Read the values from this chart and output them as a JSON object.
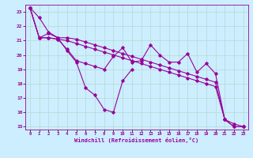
{
  "xlabel": "Windchill (Refroidissement éolien,°C)",
  "background_color": "#cceeff",
  "grid_color": "#b8ddd8",
  "line_color": "#990099",
  "xlim": [
    -0.5,
    23.5
  ],
  "ylim": [
    14.8,
    23.5
  ],
  "yticks": [
    15,
    16,
    17,
    18,
    19,
    20,
    21,
    22,
    23
  ],
  "xticks": [
    0,
    1,
    2,
    3,
    4,
    5,
    6,
    7,
    8,
    9,
    10,
    11,
    12,
    13,
    14,
    15,
    16,
    17,
    18,
    19,
    20,
    21,
    22,
    23
  ],
  "series": [
    [
      23.3,
      22.6,
      21.6,
      21.2,
      20.3,
      19.5,
      17.7,
      17.2,
      16.2,
      16.0,
      18.2,
      19.0,
      null,
      null,
      null,
      null,
      null,
      null,
      null,
      null,
      null,
      null,
      null,
      null
    ],
    [
      23.3,
      21.2,
      21.2,
      21.1,
      21.0,
      20.8,
      20.6,
      20.4,
      20.2,
      20.0,
      19.8,
      19.6,
      19.4,
      19.2,
      19.0,
      18.8,
      18.6,
      18.4,
      18.2,
      18.0,
      17.8,
      15.5,
      15.0,
      15.0
    ],
    [
      23.3,
      21.2,
      21.2,
      21.1,
      20.4,
      19.6,
      19.4,
      19.2,
      19.0,
      19.9,
      20.5,
      19.5,
      19.6,
      20.7,
      20.0,
      19.5,
      19.5,
      20.1,
      18.8,
      19.4,
      18.7,
      15.5,
      15.0,
      15.0
    ],
    [
      23.3,
      21.2,
      21.5,
      21.2,
      21.2,
      21.1,
      20.9,
      20.7,
      20.5,
      20.3,
      20.1,
      19.9,
      19.7,
      19.5,
      19.3,
      19.1,
      18.9,
      18.7,
      18.5,
      18.3,
      18.1,
      15.5,
      15.2,
      15.0
    ]
  ]
}
